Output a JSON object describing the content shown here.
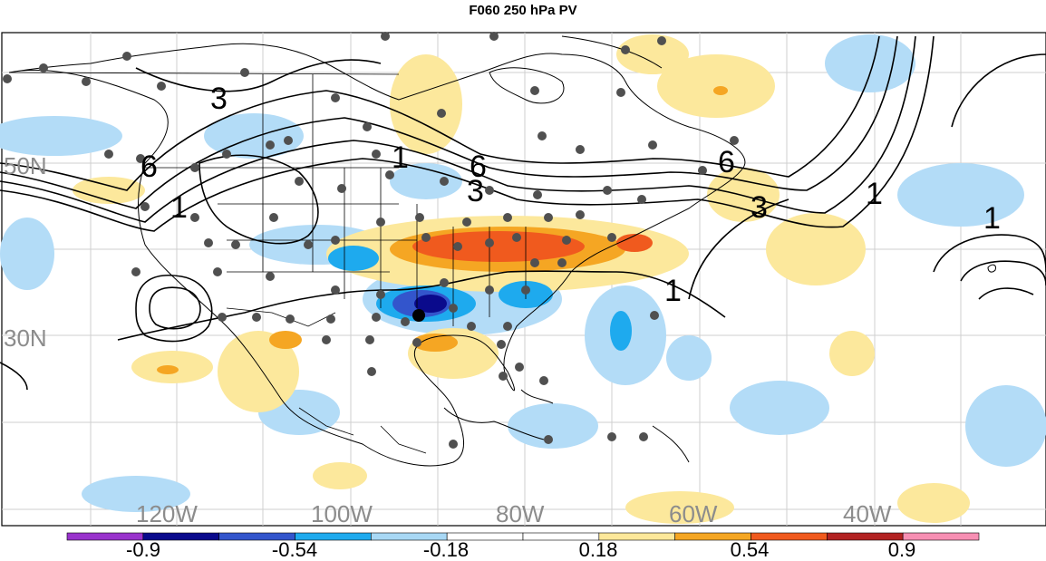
{
  "title": "F060 250 hPa PV",
  "map": {
    "lat_labels": [
      "50N",
      "30N"
    ],
    "lon_labels": [
      "120W",
      "100W",
      "80W",
      "60W",
      "40W"
    ],
    "contour_labels": [
      "3",
      "6",
      "1",
      "3",
      "6",
      "1",
      "6",
      "3",
      "1",
      "1",
      "1"
    ]
  },
  "colorbar": {
    "labels": [
      "-0.9",
      "-0.54",
      "-0.18",
      "0.18",
      "0.54",
      "0.9"
    ],
    "colors": [
      "#9933cc",
      "#0a0a8c",
      "#3355cc",
      "#1eaaee",
      "#a8d8f5",
      "#ffffff",
      "#ffffff",
      "#fde89a",
      "#f5a623",
      "#f05a1e",
      "#b22222",
      "#f78fb3"
    ]
  }
}
